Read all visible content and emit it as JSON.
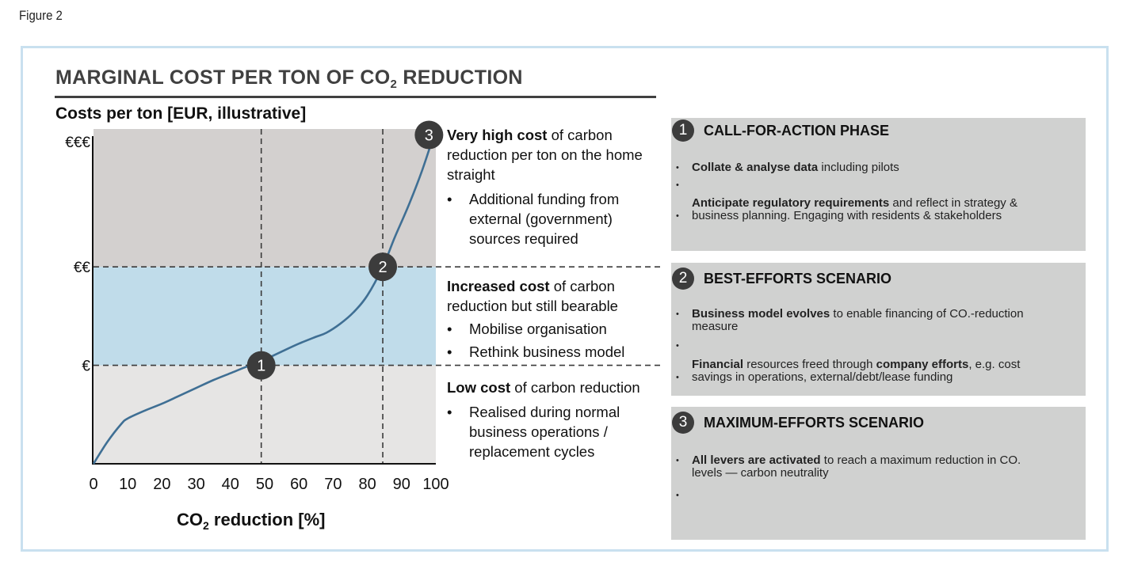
{
  "figure_label": "Figure 2",
  "title_main": "MARGINAL COST PER TON OF CO",
  "title_sub": "2",
  "title_end": " REDUCTION",
  "colors": {
    "frame": "#c9e0ef",
    "band_high": "#d3d0cf",
    "band_mid": "#c0dcea",
    "band_low": "#e6e5e4",
    "curve": "#3f6f94",
    "marker": "#3c3c3c",
    "panel": "#d0d1d0"
  },
  "chart_data": {
    "type": "line",
    "title": "MARGINAL COST PER TON OF CO2 REDUCTION",
    "ylabel": "Costs per ton [EUR, illustrative]",
    "xlabel_main": "CO",
    "xlabel_sub": "2",
    "xlabel_end": " reduction [%]",
    "xlim": [
      0,
      100
    ],
    "ylim": [
      0,
      3.4
    ],
    "x_ticks": [
      "0",
      "10",
      "20",
      "30",
      "40",
      "50",
      "60",
      "70",
      "80",
      "90",
      "100"
    ],
    "y_ticks": [
      {
        "label": "€",
        "value": 1
      },
      {
        "label": "€€",
        "value": 2
      },
      {
        "label": "€€€",
        "value": 3.4
      }
    ],
    "bands": [
      {
        "name": "low",
        "from": 0,
        "to": 1
      },
      {
        "name": "mid",
        "from": 1,
        "to": 2
      },
      {
        "name": "high",
        "from": 2,
        "to": 3.4
      }
    ],
    "vertical_refs": [
      49,
      84.5
    ],
    "series": [
      {
        "name": "Marginal cost curve",
        "x": [
          0,
          4,
          8,
          10,
          15,
          20,
          25,
          30,
          35,
          40,
          45,
          49,
          52,
          55,
          60,
          65,
          68,
          72,
          76,
          80,
          84.5,
          88,
          92,
          96,
          100
        ],
        "y": [
          0,
          0.22,
          0.4,
          0.46,
          0.54,
          0.61,
          0.69,
          0.77,
          0.85,
          0.92,
          0.99,
          1.04,
          1.09,
          1.14,
          1.22,
          1.29,
          1.33,
          1.42,
          1.54,
          1.71,
          2.0,
          2.3,
          2.62,
          2.98,
          3.4
        ]
      }
    ],
    "markers": [
      {
        "label": "1",
        "x": 49,
        "y": 1
      },
      {
        "label": "2",
        "x": 84.5,
        "y": 2
      },
      {
        "label": "3",
        "x": 98,
        "y": 3.34
      }
    ]
  },
  "notes": {
    "high": {
      "bold": "Very high cost",
      "rest": " of carbon reduction per ton on the home straight",
      "bullets": [
        "Additional funding from external (government) sources required"
      ]
    },
    "mid": {
      "bold": "Increased cost",
      "rest": " of carbon reduction but still bearable",
      "bullets": [
        "Mobilise organisation",
        "Rethink business model"
      ]
    },
    "low": {
      "bold": "Low cost",
      "rest": " of carbon reduction",
      "bullets": [
        "Realised during normal business operations / replacement cycles"
      ]
    }
  },
  "panels": [
    {
      "number": "1",
      "heading": "CALL-FOR-ACTION PHASE",
      "item1_bold": "Collate & analyse data",
      "item1_rest": " including pilots",
      "item2_bold": "Anticipate regulatory requirements",
      "item2_rest": " and reflect in strategy &",
      "item2_line2": "business planning. Engaging with residents & stakeholders",
      "bullet": "•"
    },
    {
      "number": "2",
      "heading": "BEST-EFFORTS SCENARIO",
      "item1_bold": "Business model evolves",
      "item1_rest": " to enable financing of CO.-reduction",
      "item1_line2": "measure",
      "item2_bold": "Financial",
      "item2_mid": " resources freed through ",
      "item2_bold2": "company efforts",
      "item2_rest": ", e.g. cost",
      "item2_line2": "savings in operations, external/debt/lease funding",
      "bullet": "•"
    },
    {
      "number": "3",
      "heading": "MAXIMUM-EFFORTS SCENARIO",
      "item1_bold": "All levers are activated",
      "item1_rest": " to reach a maximum reduction in CO.",
      "item1_line2": "levels — carbon neutrality",
      "bullet": "•"
    }
  ]
}
